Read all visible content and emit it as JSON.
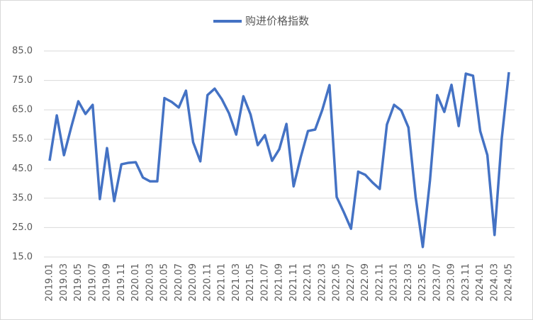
{
  "chart_data": {
    "type": "line",
    "categories": [
      "2019.01",
      null,
      "2019.03",
      null,
      "2019.05",
      null,
      "2019.07",
      null,
      "2019.09",
      null,
      "2019.11",
      null,
      "2020.01",
      null,
      "2020.03",
      null,
      "2020.05",
      null,
      "2020.07",
      null,
      "2020.09",
      null,
      "2020.11",
      null,
      "2021.01",
      null,
      "2021.03",
      null,
      "2021.05",
      null,
      "2021.07",
      null,
      "2021.09",
      null,
      "2021.11",
      null,
      "2022.01",
      null,
      "2022.03",
      null,
      "2022.05",
      null,
      "2022.07",
      null,
      "2022.09",
      null,
      "2022.11",
      null,
      "2023.01",
      null,
      "2023.03",
      null,
      "2023.05",
      null,
      "2023.07",
      null,
      "2023.09",
      null,
      "2023.11",
      null,
      "2024.01",
      null,
      "2024.03",
      null,
      "2024.05"
    ],
    "series": [
      {
        "name": "购进价格指数",
        "color": "#4472c4",
        "values": [
          47.7,
          63.1,
          49.6,
          59,
          67.9,
          63.6,
          66.7,
          34.7,
          52,
          34,
          46.5,
          47,
          47.2,
          42,
          40.7,
          40.7,
          69,
          67.7,
          65.8,
          71.5,
          54,
          47.5,
          70,
          72.2,
          68.6,
          63.8,
          56.6,
          69.6,
          63.4,
          53,
          56.4,
          47.7,
          51.6,
          60.2,
          39,
          49,
          57.8,
          58.3,
          65,
          73.4,
          35.4,
          30.2,
          24.6,
          44,
          42.9,
          40.3,
          38.1,
          60,
          66.7,
          64.8,
          59,
          35.4,
          18.4,
          41,
          70,
          64.3,
          73.5,
          59.5,
          77.3,
          76.6,
          57.8,
          49.6,
          22.5,
          55.2,
          77.8
        ]
      }
    ],
    "ylim": [
      15,
      85
    ],
    "yticks": [
      {
        "value": 15,
        "label": "15.0"
      },
      {
        "value": 25,
        "label": "25.0"
      },
      {
        "value": 35,
        "label": "35.0"
      },
      {
        "value": 45,
        "label": "45.0"
      },
      {
        "value": 55,
        "label": "55.0"
      },
      {
        "value": 65,
        "label": "65.0"
      },
      {
        "value": 75,
        "label": "75.0"
      },
      {
        "value": 85,
        "label": "85.0"
      }
    ],
    "grid": true,
    "legend": "top"
  }
}
